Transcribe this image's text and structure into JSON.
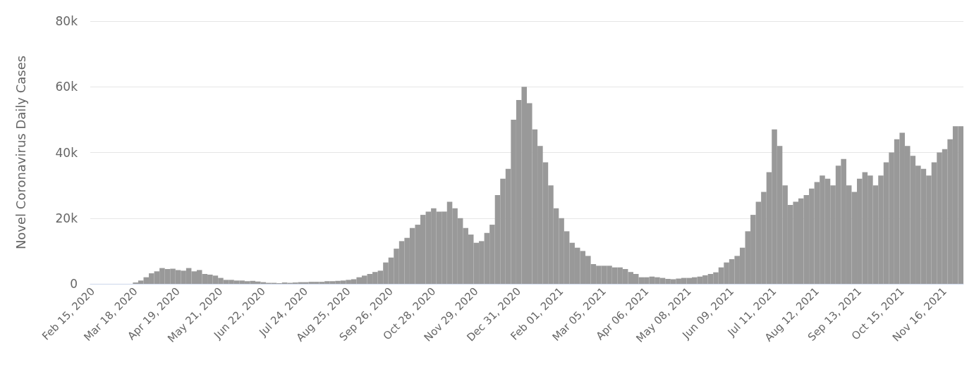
{
  "chart_data": {
    "type": "bar",
    "ylabel": "Novel Coronavirus Daily Cases",
    "categories": [
      "Feb 15, 2020",
      null,
      null,
      null,
      null,
      null,
      null,
      null,
      "Mar 18, 2020",
      null,
      null,
      null,
      null,
      null,
      null,
      null,
      "Apr 19, 2020",
      null,
      null,
      null,
      null,
      null,
      null,
      null,
      "May 21, 2020",
      null,
      null,
      null,
      null,
      null,
      null,
      null,
      "Jun 22, 2020",
      null,
      null,
      null,
      null,
      null,
      null,
      null,
      "Jul 24, 2020",
      null,
      null,
      null,
      null,
      null,
      null,
      null,
      "Aug 25, 2020",
      null,
      null,
      null,
      null,
      null,
      null,
      null,
      "Sep 26, 2020",
      null,
      null,
      null,
      null,
      null,
      null,
      null,
      "Oct 28, 2020",
      null,
      null,
      null,
      null,
      null,
      null,
      null,
      "Nov 29, 2020",
      null,
      null,
      null,
      null,
      null,
      null,
      null,
      "Dec 31, 2020",
      null,
      null,
      null,
      null,
      null,
      null,
      null,
      "Feb 01, 2021",
      null,
      null,
      null,
      null,
      null,
      null,
      null,
      "Mar 05, 2021",
      null,
      null,
      null,
      null,
      null,
      null,
      null,
      "Apr 06, 2021",
      null,
      null,
      null,
      null,
      null,
      null,
      null,
      "May 08, 2021",
      null,
      null,
      null,
      null,
      null,
      null,
      null,
      "Jun 09, 2021",
      null,
      null,
      null,
      null,
      null,
      null,
      null,
      "Jul 11, 2021",
      null,
      null,
      null,
      null,
      null,
      null,
      null,
      "Aug 12, 2021",
      null,
      null,
      null,
      null,
      null,
      null,
      null,
      "Sep 13, 2021",
      null,
      null,
      null,
      null,
      null,
      null,
      null,
      "Oct 15, 2021",
      null,
      null,
      null,
      null,
      null,
      null,
      null,
      "Nov 16, 2021",
      null,
      null,
      null
    ],
    "values": [
      0,
      0,
      0,
      0,
      0,
      0,
      0,
      0,
      400,
      1000,
      2000,
      3200,
      3800,
      4800,
      4500,
      4600,
      4200,
      4000,
      4800,
      3800,
      4200,
      3000,
      2800,
      2500,
      1800,
      1200,
      1200,
      1000,
      1000,
      800,
      900,
      700,
      500,
      300,
      300,
      200,
      400,
      300,
      400,
      500,
      500,
      600,
      600,
      600,
      800,
      800,
      900,
      1000,
      1200,
      1400,
      2000,
      2500,
      3000,
      3600,
      4000,
      6500,
      8000,
      10700,
      13000,
      14000,
      17000,
      18000,
      21000,
      22000,
      23000,
      22000,
      22000,
      25000,
      23000,
      20000,
      17000,
      15000,
      12500,
      13000,
      15500,
      18000,
      27000,
      32000,
      35000,
      50000,
      56000,
      60000,
      55000,
      47000,
      42000,
      37000,
      30000,
      23000,
      20000,
      16000,
      12500,
      11000,
      10000,
      8500,
      6000,
      5500,
      5500,
      5500,
      5000,
      5000,
      4500,
      3600,
      3000,
      2000,
      2000,
      2200,
      2000,
      1800,
      1500,
      1400,
      1600,
      1800,
      1800,
      2000,
      2200,
      2600,
      3000,
      3500,
      5000,
      6500,
      7500,
      8500,
      11000,
      16000,
      21000,
      25000,
      28000,
      34000,
      47000,
      42000,
      30000,
      24000,
      25000,
      26000,
      27000,
      29000,
      31000,
      33000,
      32000,
      30000,
      36000,
      38000,
      30000,
      28000,
      32000,
      34000,
      33000,
      30000,
      33000,
      37000,
      40000,
      44000,
      46000,
      42000,
      39000,
      36000,
      35000,
      33000,
      37000,
      40000,
      41000,
      44000,
      48000,
      48000
    ],
    "color": "#999999",
    "ylim": [
      0,
      80000
    ],
    "yticks": [
      {
        "value": 0,
        "label": "0"
      },
      {
        "value": 20000,
        "label": "20k"
      },
      {
        "value": 40000,
        "label": "40k"
      },
      {
        "value": 60000,
        "label": "60k"
      },
      {
        "value": 80000,
        "label": "80k"
      }
    ],
    "grid": "y"
  }
}
